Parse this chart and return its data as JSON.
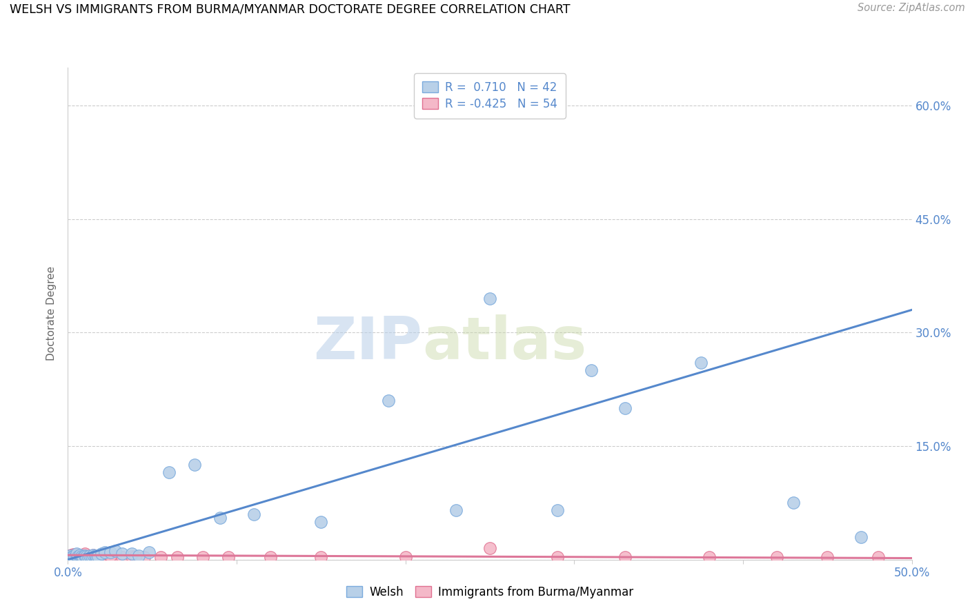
{
  "title": "WELSH VS IMMIGRANTS FROM BURMA/MYANMAR DOCTORATE DEGREE CORRELATION CHART",
  "source": "Source: ZipAtlas.com",
  "ylabel": "Doctorate Degree",
  "xlim": [
    0.0,
    0.5
  ],
  "ylim": [
    0.0,
    0.65
  ],
  "xticks": [
    0.0,
    0.1,
    0.2,
    0.3,
    0.4,
    0.5
  ],
  "yticks": [
    0.0,
    0.15,
    0.3,
    0.45,
    0.6
  ],
  "ytick_labels": [
    "",
    "15.0%",
    "30.0%",
    "45.0%",
    "60.0%"
  ],
  "xtick_labels": [
    "0.0%",
    "",
    "",
    "",
    "",
    "50.0%"
  ],
  "grid_color": "#cccccc",
  "watermark_zip": "ZIP",
  "watermark_atlas": "atlas",
  "welsh_color": "#b8d0e8",
  "welsh_edge_color": "#7aaadd",
  "pink_color": "#f4b8c8",
  "pink_edge_color": "#e07090",
  "blue_line_color": "#5588cc",
  "pink_line_color": "#dd7799",
  "legend_R_welsh": "R =  0.710",
  "legend_N_welsh": "N = 42",
  "legend_R_pink": "R = -0.425",
  "legend_N_pink": "N = 54",
  "welsh_x": [
    0.001,
    0.002,
    0.003,
    0.004,
    0.005,
    0.005,
    0.006,
    0.007,
    0.007,
    0.008,
    0.009,
    0.01,
    0.011,
    0.012,
    0.013,
    0.014,
    0.015,
    0.016,
    0.017,
    0.018,
    0.02,
    0.022,
    0.025,
    0.028,
    0.032,
    0.038,
    0.042,
    0.048,
    0.06,
    0.075,
    0.09,
    0.11,
    0.15,
    0.19,
    0.23,
    0.29,
    0.33,
    0.375,
    0.43,
    0.47,
    0.25,
    0.31
  ],
  "welsh_y": [
    0.005,
    0.003,
    0.004,
    0.003,
    0.005,
    0.008,
    0.004,
    0.003,
    0.006,
    0.004,
    0.003,
    0.005,
    0.004,
    0.003,
    0.005,
    0.004,
    0.006,
    0.005,
    0.003,
    0.004,
    0.008,
    0.01,
    0.01,
    0.012,
    0.008,
    0.008,
    0.005,
    0.01,
    0.115,
    0.125,
    0.055,
    0.06,
    0.05,
    0.21,
    0.065,
    0.065,
    0.2,
    0.26,
    0.075,
    0.03,
    0.345,
    0.25
  ],
  "pink_x": [
    0.001,
    0.002,
    0.002,
    0.003,
    0.003,
    0.004,
    0.004,
    0.005,
    0.005,
    0.006,
    0.006,
    0.007,
    0.007,
    0.008,
    0.008,
    0.009,
    0.009,
    0.01,
    0.01,
    0.011,
    0.011,
    0.012,
    0.013,
    0.014,
    0.015,
    0.016,
    0.017,
    0.018,
    0.019,
    0.02,
    0.022,
    0.025,
    0.028,
    0.032,
    0.038,
    0.045,
    0.055,
    0.065,
    0.08,
    0.095,
    0.12,
    0.15,
    0.2,
    0.25,
    0.29,
    0.33,
    0.38,
    0.42,
    0.45,
    0.48,
    0.01,
    0.015,
    0.025,
    0.04
  ],
  "pink_y": [
    0.005,
    0.004,
    0.006,
    0.003,
    0.007,
    0.004,
    0.006,
    0.003,
    0.007,
    0.004,
    0.006,
    0.003,
    0.005,
    0.004,
    0.006,
    0.003,
    0.005,
    0.004,
    0.006,
    0.003,
    0.005,
    0.004,
    0.005,
    0.003,
    0.004,
    0.005,
    0.003,
    0.004,
    0.005,
    0.003,
    0.004,
    0.003,
    0.004,
    0.003,
    0.004,
    0.003,
    0.003,
    0.003,
    0.003,
    0.003,
    0.003,
    0.003,
    0.003,
    0.015,
    0.003,
    0.003,
    0.003,
    0.003,
    0.003,
    0.003,
    0.008,
    0.006,
    0.005,
    0.004
  ],
  "blue_line_x": [
    0.0,
    0.5
  ],
  "blue_line_y": [
    0.0,
    0.33
  ],
  "pink_line_x": [
    0.0,
    0.5
  ],
  "pink_line_y": [
    0.006,
    0.002
  ]
}
